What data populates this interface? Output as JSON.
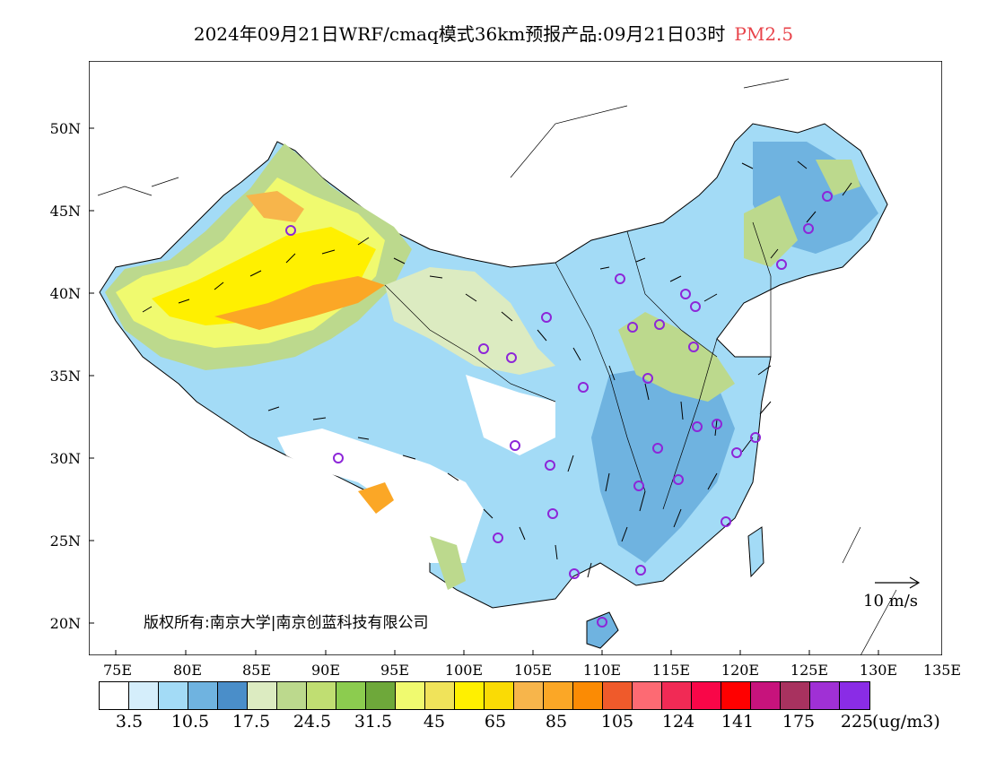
{
  "title": {
    "main": "2024年09月21日WRF/cmaq模式36km预报产品:09月21日03时",
    "pollutant": "PM2.5",
    "pollutant_color": "#e8434a"
  },
  "axes": {
    "lat_labels": [
      "50N",
      "45N",
      "40N",
      "35N",
      "30N",
      "25N",
      "20N"
    ],
    "lon_labels": [
      "75E",
      "80E",
      "85E",
      "90E",
      "95E",
      "100E",
      "105E",
      "110E",
      "115E",
      "120E",
      "125E",
      "130E",
      "135E"
    ]
  },
  "credit": "版权所有:南京大学|南京创蓝科技有限公司",
  "wind_scale": "10 m/s",
  "colorbar": {
    "colors": [
      "#ffffff",
      "#d5eefb",
      "#a3dbf6",
      "#6fb3e0",
      "#4a8ec9",
      "#dcebc1",
      "#bcd98d",
      "#c0de72",
      "#8ccc4f",
      "#6ea83a",
      "#f0fa6f",
      "#f0e35a",
      "#fff000",
      "#fadb05",
      "#f7b54b",
      "#fba726",
      "#fb8b04",
      "#ef5a2b",
      "#fd6a73",
      "#f12a55",
      "#f90648",
      "#ff0000",
      "#c7137c",
      "#a8325f",
      "#a030d5",
      "#8a2ce6"
    ],
    "labels": [
      "3.5",
      "10.5",
      "17.5",
      "24.5",
      "31.5",
      "45",
      "65",
      "85",
      "105",
      "124",
      "141",
      "175",
      "225"
    ],
    "unit": "(ug/m3)"
  },
  "colors": {
    "water_label": "#000000",
    "city_marker": "#8d26d8"
  }
}
